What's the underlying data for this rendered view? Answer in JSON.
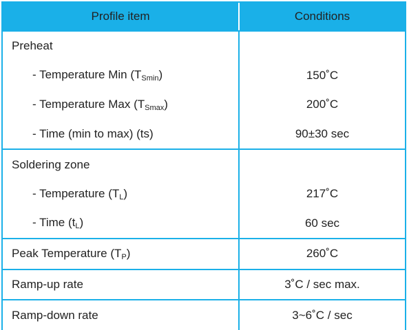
{
  "table": {
    "header": [
      "Profile item",
      "Conditions"
    ],
    "groups": [
      {
        "lines": [
          {
            "label": [
              {
                "text": "Preheat"
              }
            ]
          },
          {
            "label": [
              {
                "text": "- Temperature Min (T"
              },
              {
                "sub": "Smin"
              },
              {
                "text": ")"
              }
            ],
            "value": "150˚C"
          },
          {
            "label": [
              {
                "text": "- Temperature Max (T"
              },
              {
                "sub": "Smax"
              },
              {
                "text": ")"
              }
            ],
            "value": "200˚C"
          },
          {
            "label": [
              {
                "text": "- Time (min to max) (ts)"
              }
            ],
            "value": "90±30 sec"
          }
        ]
      },
      {
        "lines": [
          {
            "label": [
              {
                "text": "Soldering zone"
              }
            ]
          },
          {
            "label": [
              {
                "text": "- Temperature (T"
              },
              {
                "sub": "L"
              },
              {
                "text": ")"
              }
            ],
            "value": "217˚C"
          },
          {
            "label": [
              {
                "text": "- Time (t"
              },
              {
                "sub": "L"
              },
              {
                "text": ")"
              }
            ],
            "value": "60 sec"
          }
        ]
      },
      {
        "lines": [
          {
            "label": [
              {
                "text": "Peak Temperature (T"
              },
              {
                "sub": "P"
              },
              {
                "text": ")"
              }
            ],
            "value": "260˚C"
          }
        ]
      },
      {
        "lines": [
          {
            "label": [
              {
                "text": "Ramp-up rate"
              }
            ],
            "value": "3˚C / sec max."
          }
        ]
      },
      {
        "lines": [
          {
            "label": [
              {
                "text": "Ramp-down rate"
              }
            ],
            "value": "3~6˚C / sec"
          }
        ]
      }
    ]
  }
}
